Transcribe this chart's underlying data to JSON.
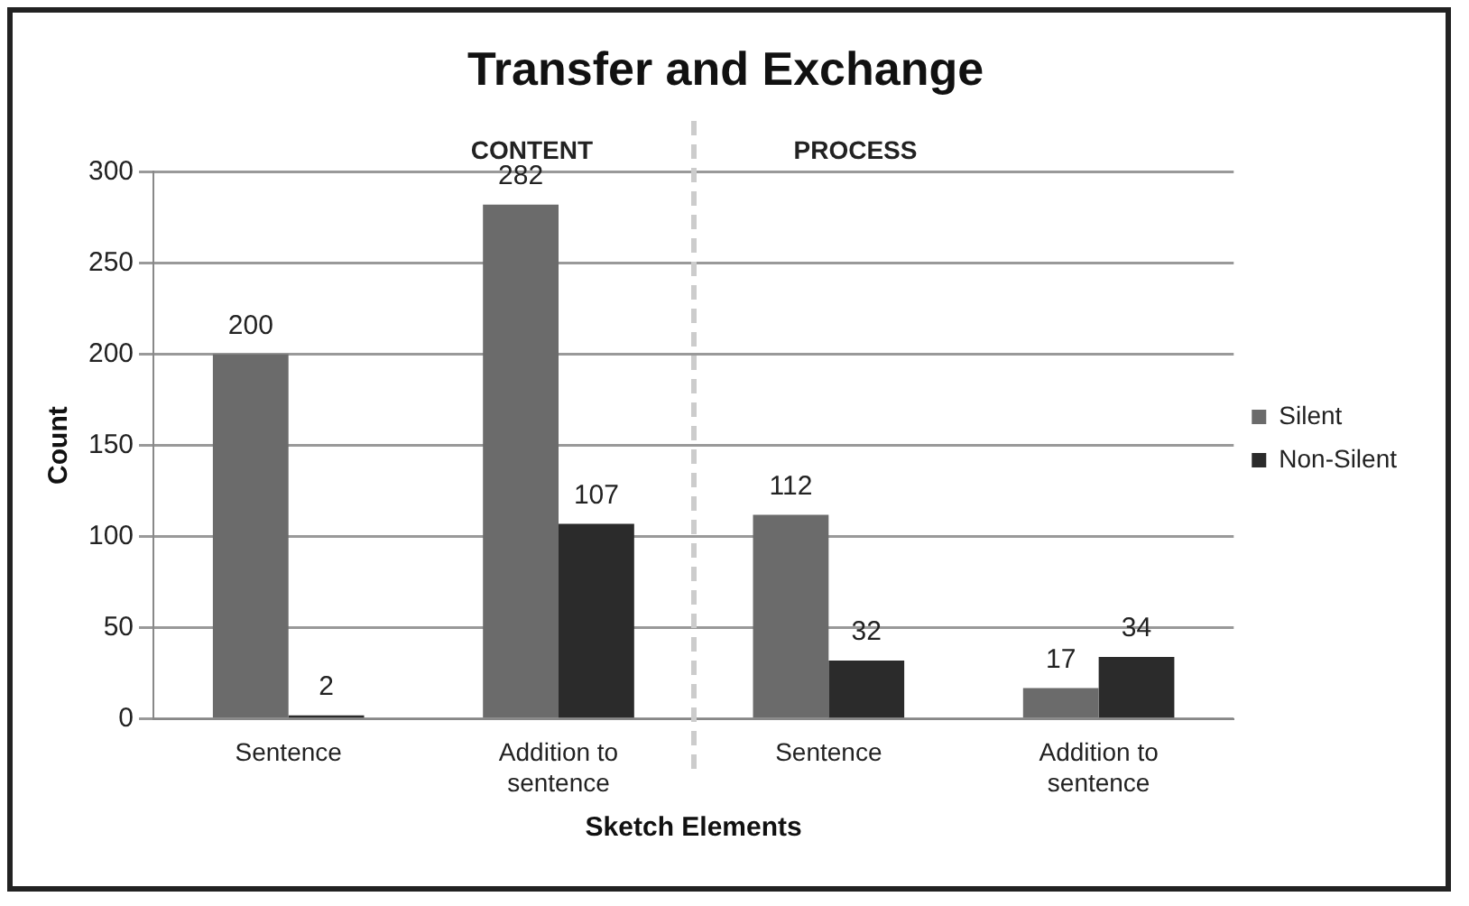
{
  "chart_data": {
    "type": "bar",
    "title": "Transfer and Exchange",
    "xlabel": "Sketch Elements",
    "ylabel": "Count",
    "categories": [
      "Sentence",
      "Addition to sentence",
      "Sentence",
      "Addition to sentence"
    ],
    "series": [
      {
        "name": "Silent",
        "color": "#6b6b6b",
        "values": [
          200,
          282,
          112,
          17
        ]
      },
      {
        "name": "Non-Silent",
        "color": "#2b2b2b",
        "values": [
          2,
          107,
          32,
          34
        ]
      }
    ],
    "ylim": [
      0,
      300
    ],
    "yticks": [
      0,
      50,
      100,
      150,
      200,
      250,
      300
    ],
    "grid": "y",
    "legend": "right",
    "data_labels": true,
    "annotations": [
      "CONTENT",
      "PROCESS"
    ]
  }
}
